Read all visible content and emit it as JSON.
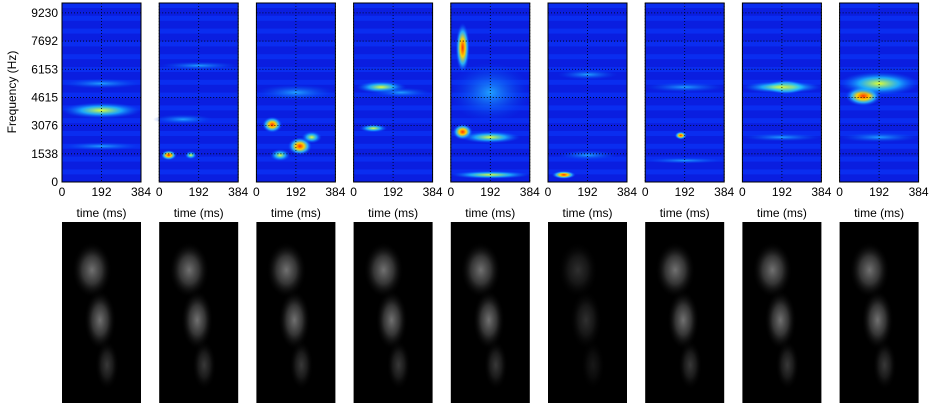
{
  "y_label": "Frequency (Hz)",
  "yticks": [
    0,
    1538,
    3076,
    4615,
    6153,
    7692,
    9230
  ],
  "ylim": [
    0,
    9770
  ],
  "panels": [
    {
      "x_label": "time (ms)",
      "xticks": [
        0,
        192,
        384
      ]
    },
    {
      "x_label": "time (ms)",
      "xticks": [
        0,
        192,
        384
      ]
    },
    {
      "x_label": "time (ms)",
      "xticks": [
        0,
        192,
        384
      ]
    },
    {
      "x_label": "time (ms)",
      "xticks": [
        0,
        192,
        384
      ]
    },
    {
      "x_label": "time (ms)",
      "xticks": [
        0,
        192,
        384
      ]
    },
    {
      "x_label": "time (ms)",
      "xticks": [
        0,
        192,
        384
      ]
    },
    {
      "x_label": "time (ms)",
      "xticks": [
        0,
        192,
        384
      ]
    },
    {
      "x_label": "time (ms)",
      "xticks": [
        0,
        192,
        384
      ]
    },
    {
      "x_label": "time (ms)",
      "xticks": [
        0,
        192,
        384
      ]
    }
  ]
}
